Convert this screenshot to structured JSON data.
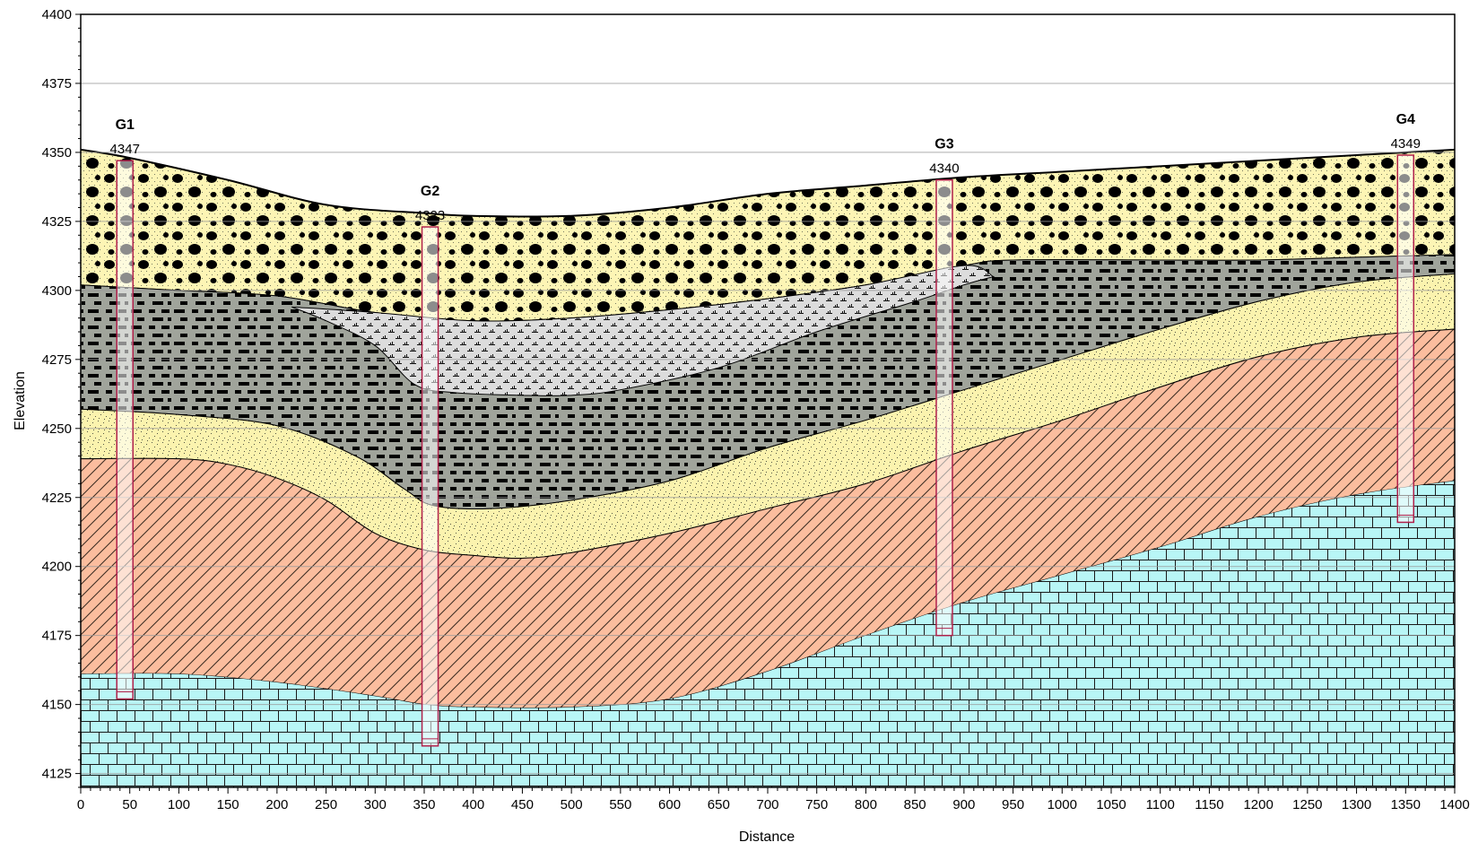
{
  "chart_data": {
    "type": "area",
    "title": "",
    "xlabel": "Distance",
    "ylabel": "Elevation",
    "xlim": [
      0,
      1400
    ],
    "ylim": [
      4120,
      4400
    ],
    "x_ticks": [
      0,
      50,
      100,
      150,
      200,
      250,
      300,
      350,
      400,
      450,
      500,
      550,
      600,
      650,
      700,
      750,
      800,
      850,
      900,
      950,
      1000,
      1050,
      1100,
      1150,
      1200,
      1250,
      1300,
      1350,
      1400
    ],
    "y_ticks": [
      4125,
      4150,
      4175,
      4200,
      4225,
      4250,
      4275,
      4300,
      4325,
      4350,
      4375,
      4400
    ],
    "grid": true,
    "colors": {
      "gravel_fill": "#fdf5b5",
      "clay_fill": "#a0a49b",
      "silt_fill": "#dcdcdc",
      "sand_fill": "#fbf3ae",
      "sandstone_fill": "#fbbd9e",
      "limestone_fill": "#b8f6f6",
      "well_outline": "#b0204a",
      "grid_line": "#9a9a9a"
    },
    "surfaces": {
      "ground": [
        [
          0,
          4351
        ],
        [
          50,
          4348
        ],
        [
          150,
          4340
        ],
        [
          250,
          4331
        ],
        [
          350,
          4328
        ],
        [
          400,
          4327
        ],
        [
          500,
          4327
        ],
        [
          600,
          4330
        ],
        [
          700,
          4335
        ],
        [
          800,
          4338
        ],
        [
          900,
          4341
        ],
        [
          1000,
          4343
        ],
        [
          1100,
          4345
        ],
        [
          1200,
          4347
        ],
        [
          1300,
          4349
        ],
        [
          1400,
          4351
        ]
      ],
      "gravel_base": [
        [
          0,
          4302
        ],
        [
          100,
          4300
        ],
        [
          200,
          4298
        ],
        [
          300,
          4292
        ],
        [
          400,
          4289
        ],
        [
          500,
          4290
        ],
        [
          600,
          4293
        ],
        [
          700,
          4297
        ],
        [
          800,
          4302
        ],
        [
          900,
          4309
        ],
        [
          950,
          4311
        ],
        [
          1100,
          4311
        ],
        [
          1200,
          4311
        ],
        [
          1300,
          4312
        ],
        [
          1400,
          4313
        ]
      ],
      "silt_lens_base": [
        [
          215,
          4294
        ],
        [
          250,
          4289
        ],
        [
          300,
          4280
        ],
        [
          340,
          4266
        ],
        [
          380,
          4263
        ],
        [
          450,
          4262
        ],
        [
          500,
          4262
        ],
        [
          550,
          4264
        ],
        [
          650,
          4272
        ],
        [
          750,
          4285
        ],
        [
          850,
          4296
        ],
        [
          900,
          4302
        ],
        [
          930,
          4305
        ]
      ],
      "clay_base": [
        [
          0,
          4257
        ],
        [
          100,
          4255
        ],
        [
          200,
          4251
        ],
        [
          280,
          4240
        ],
        [
          330,
          4228
        ],
        [
          360,
          4222
        ],
        [
          420,
          4221
        ],
        [
          500,
          4224
        ],
        [
          600,
          4231
        ],
        [
          700,
          4243
        ],
        [
          800,
          4253
        ],
        [
          900,
          4264
        ],
        [
          1000,
          4275
        ],
        [
          1100,
          4286
        ],
        [
          1200,
          4296
        ],
        [
          1300,
          4303
        ],
        [
          1400,
          4306
        ]
      ],
      "sand_base": [
        [
          0,
          4239
        ],
        [
          100,
          4239
        ],
        [
          150,
          4237
        ],
        [
          200,
          4232
        ],
        [
          250,
          4224
        ],
        [
          300,
          4212
        ],
        [
          350,
          4206
        ],
        [
          400,
          4204
        ],
        [
          450,
          4203
        ],
        [
          500,
          4205
        ],
        [
          600,
          4212
        ],
        [
          700,
          4221
        ],
        [
          800,
          4230
        ],
        [
          900,
          4242
        ],
        [
          1000,
          4253
        ],
        [
          1100,
          4265
        ],
        [
          1200,
          4276
        ],
        [
          1300,
          4283
        ],
        [
          1400,
          4286
        ]
      ],
      "sandstone_base": [
        [
          0,
          4161
        ],
        [
          100,
          4161
        ],
        [
          200,
          4158
        ],
        [
          300,
          4153
        ],
        [
          350,
          4150
        ],
        [
          400,
          4149
        ],
        [
          500,
          4149
        ],
        [
          600,
          4152
        ],
        [
          700,
          4162
        ],
        [
          800,
          4175
        ],
        [
          900,
          4187
        ],
        [
          1000,
          4197
        ],
        [
          1100,
          4207
        ],
        [
          1200,
          4218
        ],
        [
          1300,
          4226
        ],
        [
          1400,
          4231
        ]
      ]
    },
    "wells": [
      {
        "name": "G1",
        "elevation": "4347",
        "x": 45,
        "top": 4347,
        "bottom": 4152
      },
      {
        "name": "G2",
        "elevation": "4323",
        "x": 356,
        "top": 4323,
        "bottom": 4135
      },
      {
        "name": "G3",
        "elevation": "4340",
        "x": 880,
        "top": 4340,
        "bottom": 4175
      },
      {
        "name": "G4",
        "elevation": "4349",
        "x": 1350,
        "top": 4349,
        "bottom": 4216
      }
    ]
  }
}
